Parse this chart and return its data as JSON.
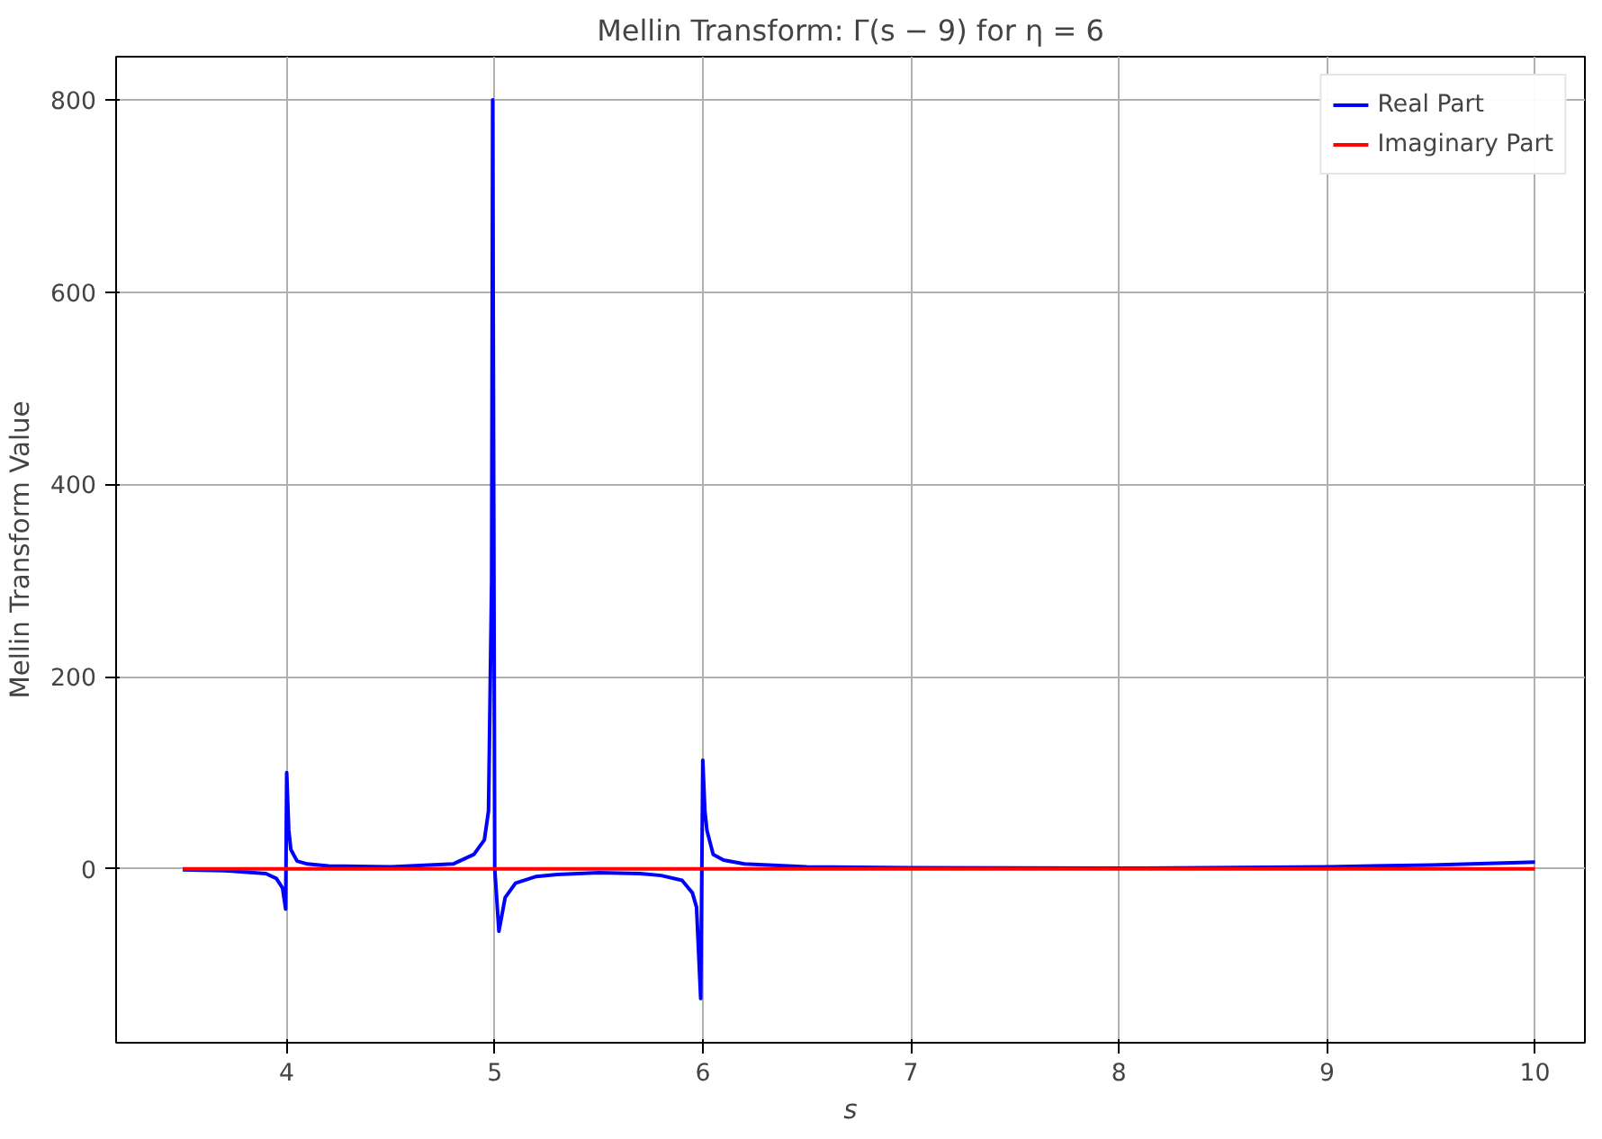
{
  "chart_data": {
    "type": "line",
    "title": "Mellin Transform: Γ(s − 9) for η = 6",
    "xlabel": "s",
    "ylabel": "Mellin Transform Value",
    "xlim": [
      3.18,
      10.24
    ],
    "ylim": [
      -181,
      845
    ],
    "xticks": [
      4,
      5,
      6,
      7,
      8,
      9,
      10
    ],
    "yticks": [
      0,
      200,
      400,
      600,
      800
    ],
    "grid": true,
    "legend": "top right",
    "line_style": "solid",
    "marker": "none",
    "series": [
      {
        "name": "Real Part",
        "color": "#0000ff",
        "x": [
          3.5,
          3.7,
          3.9,
          3.95,
          3.98,
          3.995,
          4.0,
          4.01,
          4.02,
          4.05,
          4.1,
          4.2,
          4.5,
          4.8,
          4.9,
          4.95,
          4.97,
          4.985,
          4.99,
          5.0,
          5.02,
          5.05,
          5.1,
          5.2,
          5.3,
          5.5,
          5.7,
          5.8,
          5.9,
          5.95,
          5.97,
          5.99,
          6.0,
          6.01,
          6.02,
          6.05,
          6.1,
          6.2,
          6.5,
          7,
          8,
          9,
          9.5,
          10
        ],
        "values": [
          -1,
          -2,
          -5,
          -10,
          -20,
          -42,
          100,
          40,
          20,
          8,
          5,
          3,
          2,
          5,
          15,
          30,
          60,
          300,
          800,
          0,
          -65,
          -30,
          -15,
          -8,
          -6,
          -4,
          -5,
          -7,
          -12,
          -25,
          -40,
          -135,
          113,
          60,
          40,
          15,
          9,
          5,
          2,
          1,
          0.5,
          2,
          4,
          7
        ]
      },
      {
        "name": "Imaginary Part",
        "color": "#ff0000",
        "x": [
          3.5,
          10
        ],
        "values": [
          0,
          0
        ]
      }
    ]
  }
}
